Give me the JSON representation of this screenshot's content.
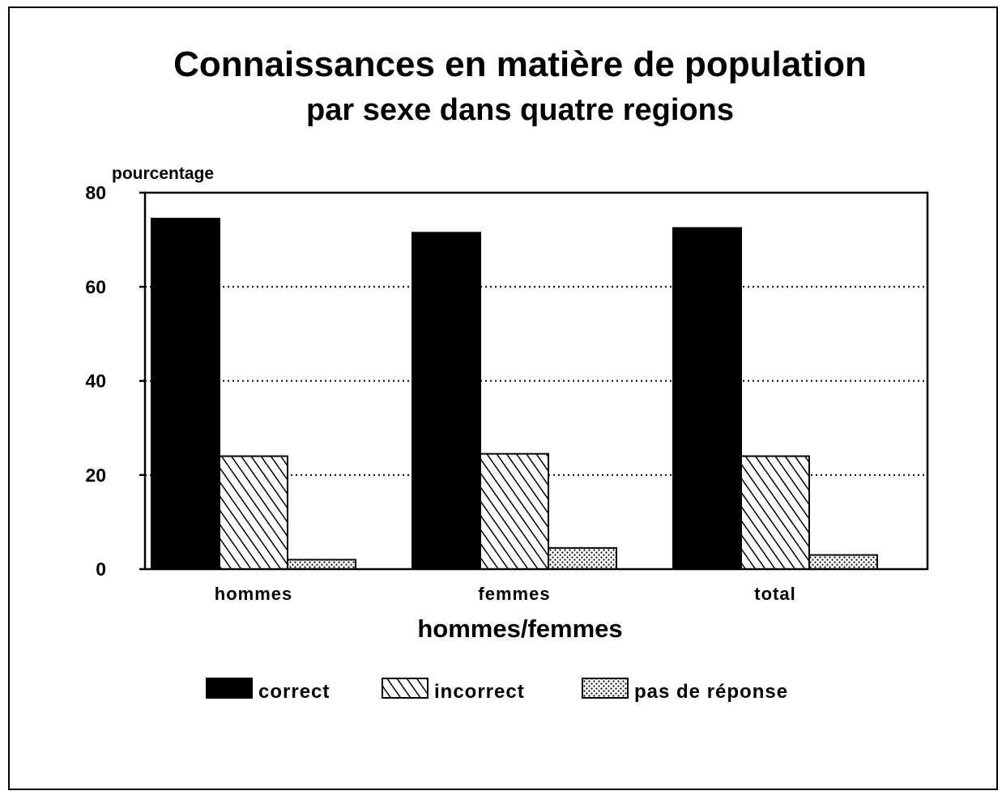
{
  "chart_data": {
    "type": "bar",
    "title": "Connaissances en matière de population",
    "subtitle": "par sexe dans quatre regions",
    "ylabel": "pourcentage",
    "xlabel": "hommes/femmes",
    "categories": [
      "hommes",
      "femmes",
      "total"
    ],
    "series": [
      {
        "name": "correct",
        "values": [
          74.5,
          71.5,
          72.5
        ],
        "pattern": "solid"
      },
      {
        "name": "incorrect",
        "values": [
          24,
          24.5,
          24
        ],
        "pattern": "diagonal-hatch"
      },
      {
        "name": "pas de réponse",
        "values": [
          2,
          4.5,
          3
        ],
        "pattern": "dots"
      }
    ],
    "ylim": [
      0,
      80
    ],
    "yticks": [
      0,
      20,
      40,
      60,
      80
    ],
    "grid": true,
    "grid_style": "dotted",
    "legend_position": "bottom"
  },
  "colors": {
    "ink": "#000000",
    "paper": "#ffffff"
  }
}
